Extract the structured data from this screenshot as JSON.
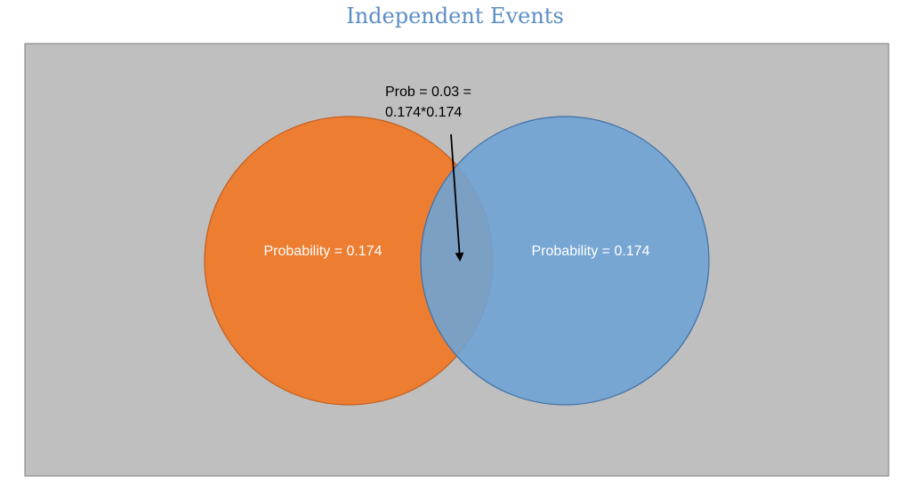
{
  "title": "Independent Events",
  "colors": {
    "title": "#5b8dc4",
    "panel_fill": "#bfbfbf",
    "panel_border": "#8c8c8c",
    "event_a_fill": "#ed7d31",
    "event_a_stroke": "#c25e1e",
    "event_b_fill": "#6fa3d5",
    "event_b_stroke": "#3f6fa3",
    "annotation_text": "#000000",
    "circle_label_text": "#ffffff"
  },
  "event_a": {
    "label": "Probability = 0.174"
  },
  "event_b": {
    "label": "Probability = 0.174"
  },
  "intersection": {
    "label_line1": "Prob = 0.03 =",
    "label_line2": "0.174*0.174"
  }
}
